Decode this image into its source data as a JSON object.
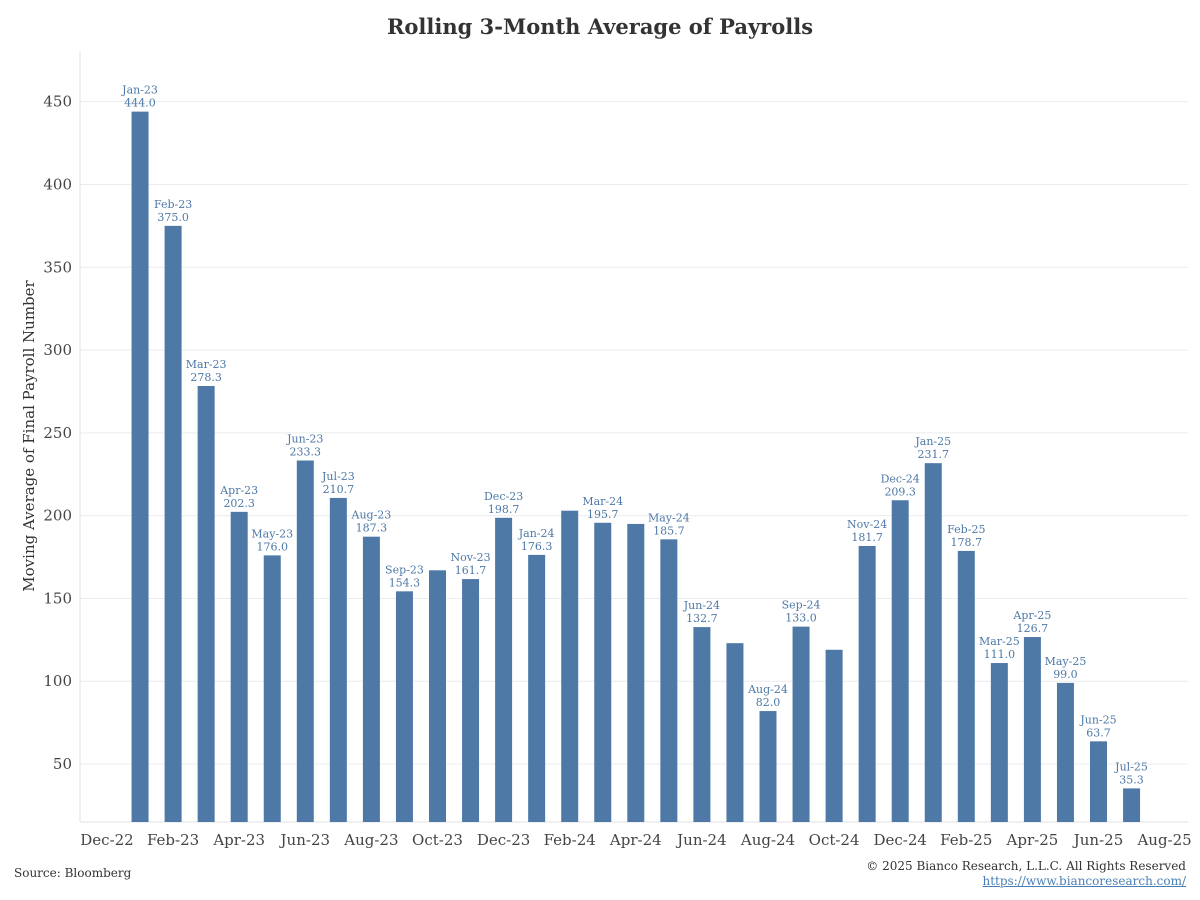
{
  "chart_data": {
    "type": "bar",
    "title": "Rolling 3-Month Average of Payrolls",
    "ylabel": "Moving Average of Final Payroll Number",
    "xlabel": "",
    "ylim": [
      15,
      480
    ],
    "yticks": [
      50,
      100,
      150,
      200,
      250,
      300,
      350,
      400,
      450
    ],
    "grid": true,
    "bar_color": "#4e79a7",
    "label_color": "#4e79a7",
    "x_tick_labels": [
      "Dec-22",
      "Feb-23",
      "Apr-23",
      "Jun-23",
      "Aug-23",
      "Oct-23",
      "Dec-23",
      "Feb-24",
      "Apr-24",
      "Jun-24",
      "Aug-24",
      "Oct-24",
      "Dec-24",
      "Feb-25",
      "Apr-25",
      "Jun-25",
      "Aug-25"
    ],
    "categories": [
      "Jan-23",
      "Feb-23",
      "Mar-23",
      "Apr-23",
      "May-23",
      "Jun-23",
      "Jul-23",
      "Aug-23",
      "Sep-23",
      "Oct-23",
      "Nov-23",
      "Dec-23",
      "Jan-24",
      "Feb-24",
      "Mar-24",
      "Apr-24",
      "May-24",
      "Jun-24",
      "Jul-24",
      "Aug-24",
      "Sep-24",
      "Oct-24",
      "Nov-24",
      "Dec-24",
      "Jan-25",
      "Feb-25",
      "Mar-25",
      "Apr-25",
      "May-25",
      "Jun-25",
      "Jul-25"
    ],
    "values": [
      444.0,
      375.0,
      278.3,
      202.3,
      176.0,
      233.3,
      210.7,
      187.3,
      154.3,
      167.0,
      161.7,
      198.7,
      176.3,
      203.0,
      195.7,
      195.0,
      185.7,
      132.7,
      123.0,
      82.0,
      133.0,
      119.0,
      181.7,
      209.3,
      231.7,
      178.7,
      111.0,
      126.7,
      99.0,
      63.7,
      35.3
    ],
    "data_labels": [
      {
        "category": "Jan-23",
        "value": "444.0"
      },
      {
        "category": "Feb-23",
        "value": "375.0"
      },
      {
        "category": "Mar-23",
        "value": "278.3"
      },
      {
        "category": "Apr-23",
        "value": "202.3"
      },
      {
        "category": "May-23",
        "value": "176.0"
      },
      {
        "category": "Jun-23",
        "value": "233.3"
      },
      {
        "category": "Jul-23",
        "value": "210.7"
      },
      {
        "category": "Aug-23",
        "value": "187.3"
      },
      {
        "category": "Sep-23",
        "value": "154.3"
      },
      {
        "category": "Nov-23",
        "value": "161.7"
      },
      {
        "category": "Dec-23",
        "value": "198.7"
      },
      {
        "category": "Jan-24",
        "value": "176.3"
      },
      {
        "category": "Mar-24",
        "value": "195.7"
      },
      {
        "category": "May-24",
        "value": "185.7"
      },
      {
        "category": "Jun-24",
        "value": "132.7"
      },
      {
        "category": "Aug-24",
        "value": "82.0"
      },
      {
        "category": "Sep-24",
        "value": "133.0"
      },
      {
        "category": "Nov-24",
        "value": "181.7"
      },
      {
        "category": "Dec-24",
        "value": "209.3"
      },
      {
        "category": "Jan-25",
        "value": "231.7"
      },
      {
        "category": "Feb-25",
        "value": "178.7"
      },
      {
        "category": "Mar-25",
        "value": "111.0"
      },
      {
        "category": "Apr-25",
        "value": "126.7"
      },
      {
        "category": "May-25",
        "value": "99.0"
      },
      {
        "category": "Jun-25",
        "value": "63.7"
      },
      {
        "category": "Jul-25",
        "value": "35.3"
      }
    ]
  },
  "footer": {
    "source": "Source: Bloomberg",
    "copyright": "© 2025 Bianco Research, L.L.C. All Rights Reserved",
    "link": "https://www.biancoresearch.com/"
  }
}
